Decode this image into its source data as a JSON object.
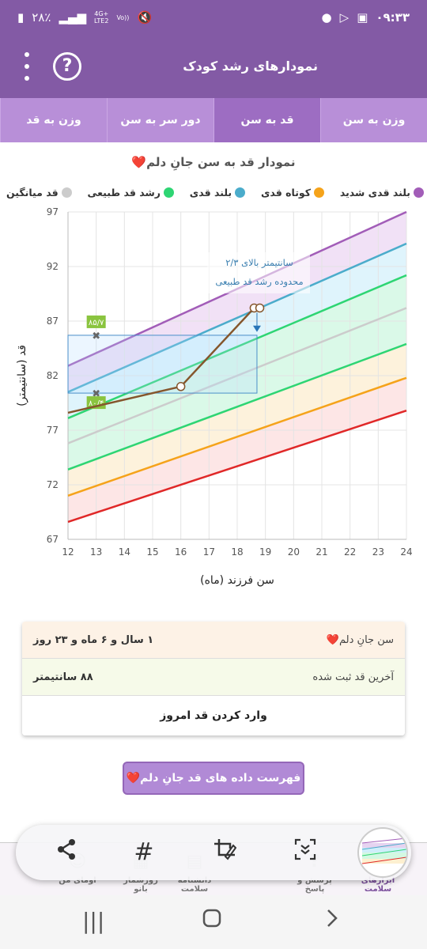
{
  "status": {
    "time": "۰۹:۳۳",
    "battery": "۲۸٪",
    "net_top": "4G+",
    "net_bottom": "LTE2",
    "vo": "Vo))"
  },
  "app": {
    "title": "نمودارهای رشد کودک",
    "help": "?"
  },
  "tabs": [
    {
      "label": "وزن به سن",
      "active": false
    },
    {
      "label": "قد به سن",
      "active": true
    },
    {
      "label": "دور سر به سن",
      "active": false
    },
    {
      "label": "وزن به قد",
      "active": false
    }
  ],
  "chart_title": "نمودار قد به سن جانِ دلم❤️",
  "legend": [
    {
      "label": "بلند قدی شدید",
      "color": "#a25db8"
    },
    {
      "label": "کوتاه قدی",
      "color": "#f5a31a"
    },
    {
      "label": "بلند قدی",
      "color": "#4baccb"
    },
    {
      "label": "رشد قد طبیعی",
      "color": "#2ed573"
    },
    {
      "label": "قد میانگین",
      "color": "#cccccc"
    }
  ],
  "chart_data": {
    "type": "line",
    "xlabel": "سن فرزند (ماه)",
    "ylabel": "قد (سانتیمتر)",
    "xlim": [
      12,
      24
    ],
    "ylim": [
      67,
      97
    ],
    "x_ticks": [
      12,
      13,
      14,
      15,
      16,
      17,
      18,
      19,
      20,
      21,
      22,
      23,
      24
    ],
    "y_ticks": [
      67,
      72,
      77,
      82,
      87,
      92,
      97
    ],
    "grid": true,
    "reference_curves": [
      {
        "label": "بلند قدی شدید",
        "color": "#a25db8",
        "x": [
          12,
          24
        ],
        "y": [
          82.9,
          97.0
        ]
      },
      {
        "label": "بلند قدی",
        "color": "#4baccb",
        "x": [
          12,
          24
        ],
        "y": [
          80.5,
          94.1
        ]
      },
      {
        "label": "رشد قد طبیعی",
        "color": "#2ed573",
        "x": [
          12,
          24
        ],
        "y": [
          78.1,
          91.2
        ]
      },
      {
        "label": "قد میانگین",
        "color": "#cccccc",
        "x": [
          12,
          24
        ],
        "y": [
          75.8,
          88.2
        ]
      },
      {
        "label": "رشد قد طبیعی",
        "color": "#2ed573",
        "x": [
          12,
          24
        ],
        "y": [
          73.4,
          84.9
        ]
      },
      {
        "label": "کوتاه قدی",
        "color": "#f5a31a",
        "x": [
          12,
          24
        ],
        "y": [
          71.0,
          81.8
        ]
      },
      {
        "color": "#e02828",
        "x": [
          12,
          24
        ],
        "y": [
          68.6,
          78.8
        ]
      }
    ],
    "child_series": {
      "color": "#85562c",
      "x": [
        12,
        16,
        18.6,
        18.8
      ],
      "y": [
        78.6,
        81.0,
        88.2,
        88.2
      ]
    },
    "markers": [
      {
        "x": 13,
        "y": 85.7,
        "label": "۸۵/۷"
      },
      {
        "x": 13,
        "y": 80.4,
        "label": "۸۰/۴"
      }
    ],
    "annotation": {
      "line1": "۲/۳ سانتیمتر بالای",
      "line2": "محدوده رشد قد طبیعی",
      "x": 18.7,
      "y_top": 88.2,
      "y_target": 86.0
    },
    "range_box": {
      "x0": 12,
      "x1": 18.7,
      "y0": 80.4,
      "y1": 85.7
    }
  },
  "info": {
    "age_label": "سن جانِ دلم❤️",
    "age_value": "۱ سال و ۶ ماه و ۲۳ روز",
    "height_label": "آخرین قد ثبت شده",
    "height_value": "۸۸ سانتیمتر",
    "enter_btn": "وارد کردن قد امروز"
  },
  "list_btn": "فهرست داده های قد جانِ دلم❤️",
  "bottom_nav": [
    {
      "label": "ابزارهای سلامت",
      "active": true
    },
    {
      "label": "پرسش و پاسخ",
      "active": false
    },
    {
      "label": "دانشنامه سلامت",
      "active": false
    },
    {
      "label": "روزشمار بانو",
      "active": false
    },
    {
      "label": "اومای من",
      "active": false
    }
  ]
}
